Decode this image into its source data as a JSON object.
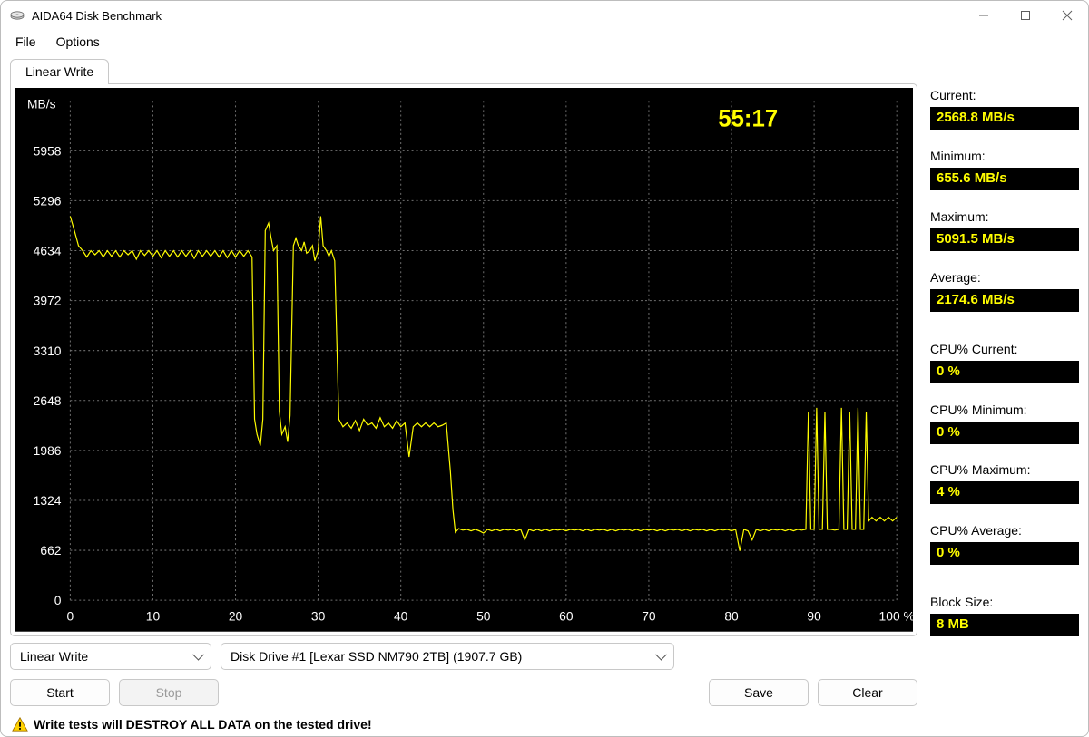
{
  "window": {
    "title": "AIDA64 Disk Benchmark"
  },
  "menu": {
    "file": "File",
    "options": "Options"
  },
  "tab": {
    "label": "Linear Write"
  },
  "chart": {
    "type": "line",
    "background_color": "#000000",
    "series_color": "#fffd00",
    "grid_color": "#707070",
    "axis_text_color": "#ffffff",
    "y_unit_label": "MB/s",
    "x_unit_suffix": "%",
    "xlim": [
      0,
      100
    ],
    "xtick_step": 10,
    "ylim": [
      0,
      6620
    ],
    "yticks": [
      0,
      662,
      1324,
      1986,
      2648,
      3310,
      3972,
      4634,
      5296,
      5958
    ],
    "timer_text": "55:17",
    "timer_color": "#fffd00",
    "data": [
      [
        0.0,
        5091
      ],
      [
        0.5,
        4900
      ],
      [
        1.0,
        4700
      ],
      [
        1.5,
        4634
      ],
      [
        2.0,
        4550
      ],
      [
        2.5,
        4634
      ],
      [
        3.0,
        4580
      ],
      [
        3.5,
        4634
      ],
      [
        4.0,
        4550
      ],
      [
        4.5,
        4634
      ],
      [
        5.0,
        4560
      ],
      [
        5.5,
        4634
      ],
      [
        6.0,
        4550
      ],
      [
        6.5,
        4634
      ],
      [
        7.0,
        4580
      ],
      [
        7.5,
        4634
      ],
      [
        8.0,
        4520
      ],
      [
        8.5,
        4634
      ],
      [
        9.0,
        4570
      ],
      [
        9.5,
        4634
      ],
      [
        10.0,
        4560
      ],
      [
        10.5,
        4634
      ],
      [
        11.0,
        4540
      ],
      [
        11.5,
        4634
      ],
      [
        12.0,
        4560
      ],
      [
        12.5,
        4634
      ],
      [
        13.0,
        4550
      ],
      [
        13.5,
        4634
      ],
      [
        14.0,
        4560
      ],
      [
        14.5,
        4634
      ],
      [
        15.0,
        4530
      ],
      [
        15.5,
        4634
      ],
      [
        16.0,
        4560
      ],
      [
        16.5,
        4634
      ],
      [
        17.0,
        4560
      ],
      [
        17.5,
        4634
      ],
      [
        18.0,
        4550
      ],
      [
        18.5,
        4634
      ],
      [
        19.0,
        4540
      ],
      [
        19.5,
        4634
      ],
      [
        20.0,
        4550
      ],
      [
        20.5,
        4634
      ],
      [
        21.0,
        4560
      ],
      [
        21.5,
        4634
      ],
      [
        22.0,
        4550
      ],
      [
        22.3,
        2400
      ],
      [
        22.6,
        2200
      ],
      [
        23.0,
        2050
      ],
      [
        23.3,
        2400
      ],
      [
        23.6,
        4900
      ],
      [
        24.0,
        5000
      ],
      [
        24.3,
        4800
      ],
      [
        24.6,
        4634
      ],
      [
        25.0,
        4700
      ],
      [
        25.3,
        2500
      ],
      [
        25.6,
        2200
      ],
      [
        26.0,
        2300
      ],
      [
        26.3,
        2100
      ],
      [
        26.6,
        2450
      ],
      [
        27.0,
        4700
      ],
      [
        27.3,
        4800
      ],
      [
        27.6,
        4700
      ],
      [
        28.0,
        4634
      ],
      [
        28.3,
        4750
      ],
      [
        28.6,
        4600
      ],
      [
        29.0,
        4634
      ],
      [
        29.3,
        4700
      ],
      [
        29.6,
        4500
      ],
      [
        30.0,
        4634
      ],
      [
        30.3,
        5091
      ],
      [
        30.6,
        4700
      ],
      [
        31.0,
        4634
      ],
      [
        31.3,
        4560
      ],
      [
        31.6,
        4634
      ],
      [
        32.0,
        4500
      ],
      [
        32.5,
        2400
      ],
      [
        33.0,
        2300
      ],
      [
        33.5,
        2350
      ],
      [
        34.0,
        2280
      ],
      [
        34.5,
        2380
      ],
      [
        35.0,
        2250
      ],
      [
        35.5,
        2400
      ],
      [
        36.0,
        2320
      ],
      [
        36.5,
        2350
      ],
      [
        37.0,
        2280
      ],
      [
        37.5,
        2420
      ],
      [
        38.0,
        2300
      ],
      [
        38.5,
        2350
      ],
      [
        39.0,
        2280
      ],
      [
        39.5,
        2380
      ],
      [
        40.0,
        2300
      ],
      [
        40.5,
        2350
      ],
      [
        41.0,
        1900
      ],
      [
        41.5,
        2300
      ],
      [
        42.0,
        2350
      ],
      [
        42.5,
        2300
      ],
      [
        43.0,
        2350
      ],
      [
        43.5,
        2300
      ],
      [
        44.0,
        2350
      ],
      [
        44.5,
        2300
      ],
      [
        45.0,
        2320
      ],
      [
        45.5,
        2350
      ],
      [
        46.0,
        1700
      ],
      [
        46.3,
        1200
      ],
      [
        46.6,
        900
      ],
      [
        47.0,
        950
      ],
      [
        47.5,
        930
      ],
      [
        48.0,
        940
      ],
      [
        48.5,
        920
      ],
      [
        49.0,
        940
      ],
      [
        49.5,
        920
      ],
      [
        50.0,
        890
      ],
      [
        50.5,
        940
      ],
      [
        51.0,
        920
      ],
      [
        51.5,
        940
      ],
      [
        52.0,
        920
      ],
      [
        52.5,
        940
      ],
      [
        53.0,
        930
      ],
      [
        53.5,
        940
      ],
      [
        54.0,
        920
      ],
      [
        54.5,
        940
      ],
      [
        55.0,
        800
      ],
      [
        55.5,
        940
      ],
      [
        56.0,
        920
      ],
      [
        56.5,
        940
      ],
      [
        57.0,
        920
      ],
      [
        57.5,
        940
      ],
      [
        58.0,
        920
      ],
      [
        58.5,
        940
      ],
      [
        59.0,
        930
      ],
      [
        59.5,
        940
      ],
      [
        60.0,
        920
      ],
      [
        60.5,
        940
      ],
      [
        61.0,
        930
      ],
      [
        61.5,
        940
      ],
      [
        62.0,
        920
      ],
      [
        62.5,
        940
      ],
      [
        63.0,
        920
      ],
      [
        63.5,
        940
      ],
      [
        64.0,
        930
      ],
      [
        64.5,
        940
      ],
      [
        65.0,
        920
      ],
      [
        65.5,
        940
      ],
      [
        66.0,
        920
      ],
      [
        66.5,
        940
      ],
      [
        67.0,
        930
      ],
      [
        67.5,
        940
      ],
      [
        68.0,
        920
      ],
      [
        68.5,
        940
      ],
      [
        69.0,
        920
      ],
      [
        69.5,
        940
      ],
      [
        70.0,
        930
      ],
      [
        70.5,
        940
      ],
      [
        71.0,
        920
      ],
      [
        71.5,
        940
      ],
      [
        72.0,
        920
      ],
      [
        72.5,
        940
      ],
      [
        73.0,
        930
      ],
      [
        73.5,
        940
      ],
      [
        74.0,
        920
      ],
      [
        74.5,
        940
      ],
      [
        75.0,
        920
      ],
      [
        75.5,
        940
      ],
      [
        76.0,
        930
      ],
      [
        76.5,
        940
      ],
      [
        77.0,
        920
      ],
      [
        77.5,
        940
      ],
      [
        78.0,
        920
      ],
      [
        78.5,
        940
      ],
      [
        79.0,
        930
      ],
      [
        79.5,
        940
      ],
      [
        80.0,
        920
      ],
      [
        80.5,
        940
      ],
      [
        81.0,
        655
      ],
      [
        81.5,
        940
      ],
      [
        82.0,
        920
      ],
      [
        82.5,
        800
      ],
      [
        83.0,
        940
      ],
      [
        83.5,
        920
      ],
      [
        84.0,
        940
      ],
      [
        84.5,
        920
      ],
      [
        85.0,
        940
      ],
      [
        85.5,
        930
      ],
      [
        86.0,
        940
      ],
      [
        86.5,
        920
      ],
      [
        87.0,
        940
      ],
      [
        87.5,
        920
      ],
      [
        88.0,
        940
      ],
      [
        88.5,
        930
      ],
      [
        89.0,
        940
      ],
      [
        89.3,
        2500
      ],
      [
        89.6,
        940
      ],
      [
        90.0,
        940
      ],
      [
        90.3,
        2550
      ],
      [
        90.6,
        940
      ],
      [
        91.0,
        940
      ],
      [
        91.3,
        2500
      ],
      [
        91.6,
        940
      ],
      [
        92.0,
        940
      ],
      [
        92.5,
        930
      ],
      [
        93.0,
        940
      ],
      [
        93.3,
        2550
      ],
      [
        93.6,
        940
      ],
      [
        94.0,
        940
      ],
      [
        94.3,
        2500
      ],
      [
        94.6,
        940
      ],
      [
        95.0,
        940
      ],
      [
        95.3,
        2550
      ],
      [
        95.6,
        940
      ],
      [
        96.0,
        940
      ],
      [
        96.3,
        2500
      ],
      [
        96.6,
        1050
      ],
      [
        97.0,
        1100
      ],
      [
        97.5,
        1050
      ],
      [
        98.0,
        1100
      ],
      [
        98.5,
        1050
      ],
      [
        99.0,
        1100
      ],
      [
        99.5,
        1050
      ],
      [
        100.0,
        1100
      ]
    ]
  },
  "stats": {
    "current": {
      "label": "Current:",
      "value": "2568.8 MB/s"
    },
    "minimum": {
      "label": "Minimum:",
      "value": "655.6 MB/s"
    },
    "maximum": {
      "label": "Maximum:",
      "value": "5091.5 MB/s"
    },
    "average": {
      "label": "Average:",
      "value": "2174.6 MB/s"
    },
    "cpu_current": {
      "label": "CPU% Current:",
      "value": "0 %"
    },
    "cpu_minimum": {
      "label": "CPU% Minimum:",
      "value": "0 %"
    },
    "cpu_maximum": {
      "label": "CPU% Maximum:",
      "value": "4 %"
    },
    "cpu_average": {
      "label": "CPU% Average:",
      "value": "0 %"
    },
    "block_size": {
      "label": "Block Size:",
      "value": "8 MB"
    }
  },
  "controls": {
    "test_select": {
      "value": "Linear Write"
    },
    "drive_select": {
      "value": "Disk Drive #1  [Lexar SSD NM790 2TB]  (1907.7 GB)"
    },
    "start": "Start",
    "stop": "Stop",
    "save": "Save",
    "clear": "Clear"
  },
  "warning": {
    "text": "Write tests will DESTROY ALL DATA on the tested drive!"
  }
}
